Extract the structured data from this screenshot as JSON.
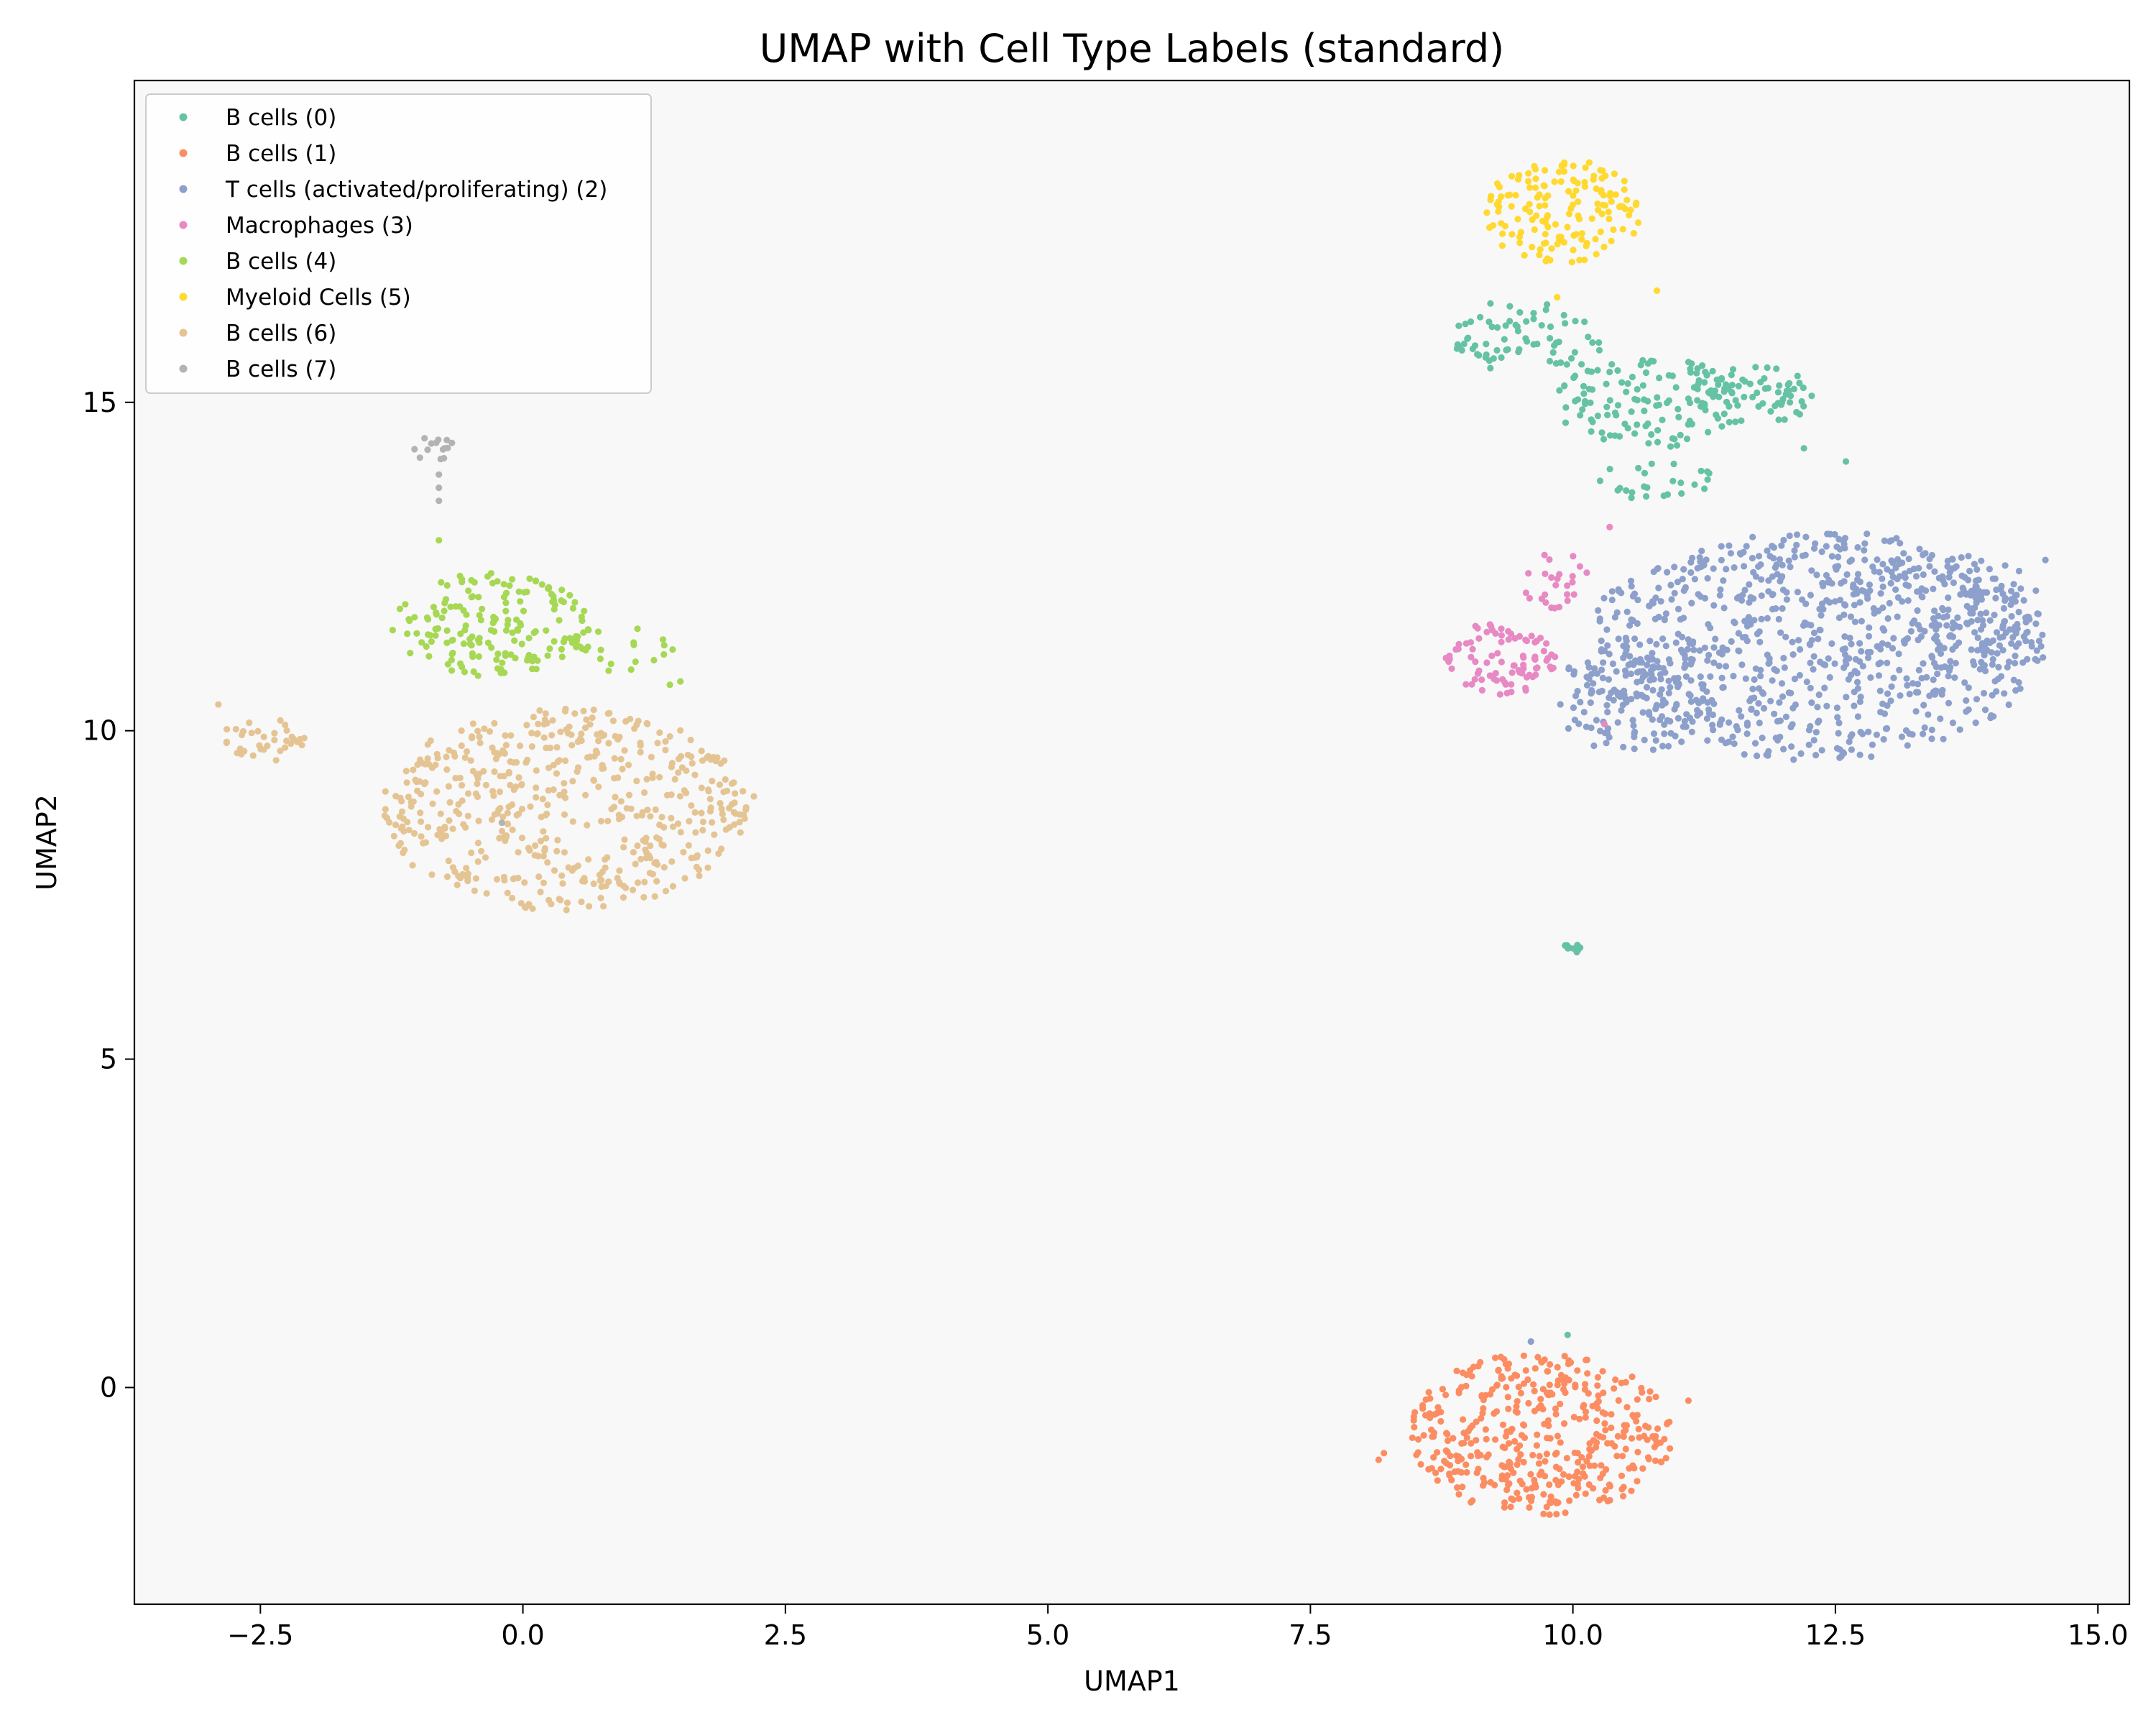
{
  "chart_data": {
    "type": "scatter",
    "title": "UMAP with Cell Type Labels (standard)",
    "xlabel": "UMAP1",
    "ylabel": "UMAP2",
    "xlim": [
      -3.7,
      15.3
    ],
    "ylim": [
      -3.3,
      19.9
    ],
    "xticks": [
      -2.5,
      0.0,
      2.5,
      5.0,
      7.5,
      10.0,
      12.5,
      15.0
    ],
    "xtick_labels": [
      "−2.5",
      "0.0",
      "2.5",
      "5.0",
      "7.5",
      "10.0",
      "12.5",
      "15.0"
    ],
    "yticks": [
      0,
      5,
      10,
      15
    ],
    "ytick_labels": [
      "0",
      "5",
      "10",
      "15"
    ],
    "grid": false,
    "legend_position": "top-left",
    "plot_background": "#f8f8f8",
    "series": [
      {
        "name": "B cells (0)",
        "color": "#66c2a5",
        "clusters": [
          {
            "cx": 9.6,
            "cy": 16.0,
            "rx": 0.75,
            "ry": 0.6,
            "n": 70
          },
          {
            "cx": 10.7,
            "cy": 15.0,
            "rx": 0.9,
            "ry": 0.7,
            "n": 120
          },
          {
            "cx": 11.7,
            "cy": 15.1,
            "rx": 0.6,
            "ry": 0.45,
            "n": 70
          },
          {
            "cx": 10.8,
            "cy": 13.8,
            "rx": 0.6,
            "ry": 0.35,
            "n": 25
          },
          {
            "cx": 10.0,
            "cy": 6.7,
            "rx": 0.08,
            "ry": 0.15,
            "n": 10
          }
        ],
        "points": [
          [
            9.95,
            0.8
          ],
          [
            12.2,
            14.3
          ],
          [
            12.6,
            14.1
          ]
        ]
      },
      {
        "name": "B cells (1)",
        "color": "#fc8d62",
        "clusters": [
          {
            "cx": 9.7,
            "cy": -0.7,
            "rx": 1.25,
            "ry": 1.25,
            "n": 420
          }
        ],
        "points": [
          [
            8.2,
            -1.0
          ],
          [
            8.15,
            -1.1
          ],
          [
            11.1,
            -0.2
          ]
        ]
      },
      {
        "name": "T cells (activated/proliferating) (2)",
        "color": "#8da0cb",
        "clusters": [
          {
            "cx": 12.3,
            "cy": 11.3,
            "rx": 2.2,
            "ry": 1.75,
            "n": 800
          },
          {
            "cx": 10.6,
            "cy": 10.5,
            "rx": 0.8,
            "ry": 0.9,
            "n": 130
          },
          {
            "cx": 13.9,
            "cy": 11.8,
            "rx": 0.55,
            "ry": 0.9,
            "n": 100
          }
        ],
        "points": [
          [
            9.6,
            0.7
          ],
          [
            14.5,
            12.6
          ]
        ]
      },
      {
        "name": "Macrophages (3)",
        "color": "#e78ac3",
        "clusters": [
          {
            "cx": 9.3,
            "cy": 11.1,
            "rx": 0.55,
            "ry": 0.55,
            "n": 90
          },
          {
            "cx": 9.8,
            "cy": 12.3,
            "rx": 0.35,
            "ry": 0.45,
            "n": 25
          }
        ],
        "points": [
          [
            10.3,
            10.1
          ],
          [
            10.35,
            13.1
          ]
        ]
      },
      {
        "name": "B cells (4)",
        "color": "#a6d854",
        "clusters": [
          {
            "cx": -0.3,
            "cy": 11.6,
            "rx": 0.95,
            "ry": 0.8,
            "n": 170
          },
          {
            "cx": 0.9,
            "cy": 11.2,
            "rx": 0.55,
            "ry": 0.4,
            "n": 25
          }
        ],
        "points": [
          [
            1.4,
            10.7
          ],
          [
            1.5,
            10.75
          ],
          [
            -0.8,
            12.9
          ]
        ]
      },
      {
        "name": "Myeloid Cells (5)",
        "color": "#ffd92f",
        "clusters": [
          {
            "cx": 9.9,
            "cy": 17.9,
            "rx": 0.75,
            "ry": 0.8,
            "n": 150
          }
        ],
        "points": [
          [
            10.8,
            16.7
          ],
          [
            9.85,
            16.6
          ]
        ]
      },
      {
        "name": "B cells (6)",
        "color": "#e5c494",
        "clusters": [
          {
            "cx": 0.4,
            "cy": 8.8,
            "rx": 1.75,
            "ry": 1.55,
            "n": 520
          },
          {
            "cx": -2.4,
            "cy": 9.9,
            "rx": 0.45,
            "ry": 0.35,
            "n": 35
          }
        ],
        "points": [
          [
            2.2,
            9.0
          ],
          [
            -2.9,
            10.4
          ],
          [
            -2.35,
            9.55
          ]
        ]
      },
      {
        "name": "B cells (7)",
        "color": "#b3b3b3",
        "clusters": [
          {
            "cx": -0.85,
            "cy": 14.3,
            "rx": 0.2,
            "ry": 0.2,
            "n": 14
          }
        ],
        "points": [
          [
            -0.8,
            13.7
          ],
          [
            -0.8,
            13.5
          ],
          [
            -0.8,
            13.9
          ],
          [
            -0.2,
            8.6
          ]
        ]
      }
    ]
  }
}
